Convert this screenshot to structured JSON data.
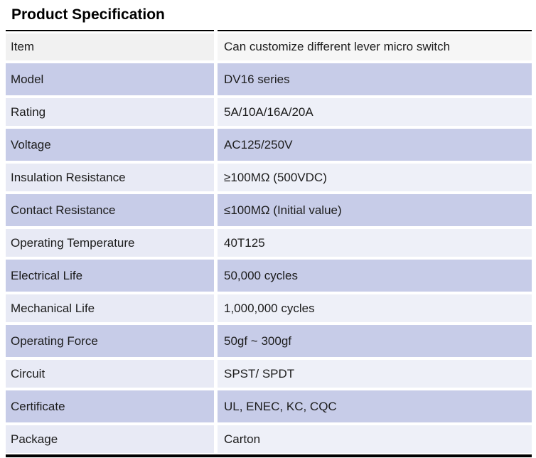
{
  "page": {
    "title": "Product Specification"
  },
  "colors": {
    "header_row_left": "#f1f1f1",
    "header_row_right": "#f6f6f6",
    "row_lavender_dark": "#c7cce8",
    "row_lavender_light_left": "#e8eaf5",
    "row_lavender_light_right": "#eef0f8",
    "rule": "#000000",
    "text": "#1c1c1c"
  },
  "table": {
    "rows": [
      {
        "label": "Item",
        "value": "Can customize different lever micro switch"
      },
      {
        "label": "Model",
        "value": "DV16 series"
      },
      {
        "label": "Rating",
        "value": "5A/10A/16A/20A"
      },
      {
        "label": "Voltage",
        "value": "AC125/250V"
      },
      {
        "label": "Insulation Resistance",
        "value": "≥100MΩ (500VDC)"
      },
      {
        "label": "Contact Resistance",
        "value": "≤100MΩ (Initial value)"
      },
      {
        "label": "Operating Temperature",
        "value": "40T125"
      },
      {
        "label": "Electrical Life",
        "value": "50,000 cycles"
      },
      {
        "label": "Mechanical Life",
        "value": "1,000,000 cycles"
      },
      {
        "label": "Operating Force",
        "value": "50gf ~ 300gf"
      },
      {
        "label": "Circuit",
        "value": "SPST/ SPDT"
      },
      {
        "label": "Certificate",
        "value": "UL, ENEC, KC, CQC"
      },
      {
        "label": "Package",
        "value": "Carton"
      }
    ]
  }
}
